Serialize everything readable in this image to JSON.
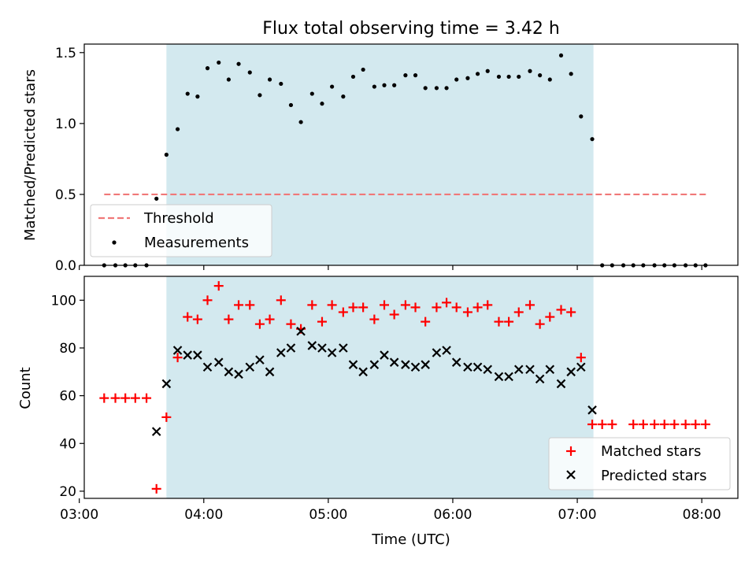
{
  "chart_data": [
    {
      "type": "scatter",
      "title": "Flux total observing time = 3.42 h",
      "xlabel": "",
      "ylabel": "Matched/Predicted stars",
      "xlim": [
        3.04,
        8.29
      ],
      "ylim": [
        0,
        1.56
      ],
      "yticks": [
        0,
        0.5,
        1.0,
        1.5
      ],
      "ytick_labels": [
        "0.0",
        "0.5",
        "1.0",
        "1.5"
      ],
      "shaded_interval": [
        3.7,
        7.13
      ],
      "shade_color": "#d3e9ef",
      "legend_position": "lower-left",
      "series": [
        {
          "name": "Threshold",
          "style": "dashed-line",
          "color": "#f07878",
          "x": [
            3.2,
            8.05
          ],
          "y": [
            0.5,
            0.5
          ]
        },
        {
          "name": "Measurements",
          "style": "dot",
          "color": "#000000",
          "x": [
            3.2,
            3.29,
            3.37,
            3.45,
            3.54,
            3.62,
            3.7,
            3.79,
            3.87,
            3.95,
            4.03,
            4.12,
            4.2,
            4.28,
            4.37,
            4.45,
            4.53,
            4.62,
            4.7,
            4.78,
            4.87,
            4.95,
            5.03,
            5.12,
            5.2,
            5.28,
            5.37,
            5.45,
            5.53,
            5.62,
            5.7,
            5.78,
            5.87,
            5.95,
            6.03,
            6.12,
            6.2,
            6.28,
            6.37,
            6.45,
            6.53,
            6.62,
            6.7,
            6.78,
            6.87,
            6.95,
            7.03,
            7.12,
            7.2,
            7.28,
            7.37,
            7.45,
            7.53,
            7.62,
            7.7,
            7.78,
            7.87,
            7.95,
            8.03
          ],
          "y": [
            0,
            0,
            0,
            0,
            0,
            0.47,
            0.78,
            0.96,
            1.21,
            1.19,
            1.39,
            1.43,
            1.31,
            1.42,
            1.36,
            1.2,
            1.31,
            1.28,
            1.13,
            1.01,
            1.21,
            1.14,
            1.26,
            1.19,
            1.33,
            1.38,
            1.26,
            1.27,
            1.27,
            1.34,
            1.34,
            1.25,
            1.25,
            1.25,
            1.31,
            1.32,
            1.35,
            1.37,
            1.33,
            1.33,
            1.33,
            1.37,
            1.34,
            1.31,
            1.48,
            1.35,
            1.05,
            0.89,
            0,
            0,
            0,
            0,
            0,
            0,
            0,
            0,
            0,
            0,
            0
          ]
        }
      ],
      "xtick_labels": [
        "03:00",
        "04:00",
        "05:00",
        "06:00",
        "07:00",
        "08:00"
      ],
      "xticks": [
        3,
        4,
        5,
        6,
        7,
        8
      ]
    },
    {
      "type": "scatter",
      "title": "",
      "xlabel": "Time (UTC)",
      "ylabel": "Count",
      "xlim": [
        3.04,
        8.29
      ],
      "ylim": [
        17,
        110
      ],
      "xticks": [
        3,
        4,
        5,
        6,
        7,
        8
      ],
      "xtick_labels": [
        "03:00",
        "04:00",
        "05:00",
        "06:00",
        "07:00",
        "08:00"
      ],
      "yticks": [
        20,
        40,
        60,
        80,
        100
      ],
      "ytick_labels": [
        "20",
        "40",
        "60",
        "80",
        "100"
      ],
      "shaded_interval": [
        3.7,
        7.13
      ],
      "shade_color": "#d3e9ef",
      "legend_position": "lower-right",
      "series": [
        {
          "name": "Matched stars",
          "style": "plus",
          "color": "#ff0000",
          "x": [
            3.2,
            3.29,
            3.37,
            3.45,
            3.54,
            3.62,
            3.7,
            3.79,
            3.87,
            3.95,
            4.03,
            4.12,
            4.2,
            4.28,
            4.37,
            4.45,
            4.53,
            4.62,
            4.7,
            4.78,
            4.87,
            4.95,
            5.03,
            5.12,
            5.2,
            5.28,
            5.37,
            5.45,
            5.53,
            5.62,
            5.7,
            5.78,
            5.87,
            5.95,
            6.03,
            6.12,
            6.2,
            6.28,
            6.37,
            6.45,
            6.53,
            6.62,
            6.7,
            6.78,
            6.87,
            6.95,
            7.03,
            7.12,
            7.2,
            7.28,
            7.37,
            7.45,
            7.53,
            7.62,
            7.7,
            7.78,
            7.87,
            7.95,
            8.03
          ],
          "y": [
            59,
            59,
            59,
            59,
            59,
            21,
            51,
            76,
            93,
            92,
            100,
            106,
            92,
            98,
            98,
            90,
            92,
            100,
            90,
            88,
            98,
            91,
            98,
            95,
            97,
            97,
            92,
            98,
            94,
            98,
            97,
            91,
            97,
            99,
            97,
            95,
            97,
            98,
            91,
            91,
            95,
            98,
            90,
            93,
            96,
            95,
            76,
            48,
            48,
            48,
            null,
            48,
            48,
            48,
            48,
            48,
            48,
            48,
            48
          ]
        },
        {
          "name": "Predicted stars",
          "style": "x",
          "color": "#000000",
          "x": [
            3.62,
            3.7,
            3.79,
            3.87,
            3.95,
            4.03,
            4.12,
            4.2,
            4.28,
            4.37,
            4.45,
            4.53,
            4.62,
            4.7,
            4.78,
            4.87,
            4.95,
            5.03,
            5.12,
            5.2,
            5.28,
            5.37,
            5.45,
            5.53,
            5.62,
            5.7,
            5.78,
            5.87,
            5.95,
            6.03,
            6.12,
            6.2,
            6.28,
            6.37,
            6.45,
            6.53,
            6.62,
            6.7,
            6.78,
            6.87,
            6.95,
            7.03,
            7.12
          ],
          "y": [
            45,
            65,
            79,
            77,
            77,
            72,
            74,
            70,
            69,
            72,
            75,
            70,
            78,
            80,
            87,
            81,
            80,
            78,
            80,
            73,
            70,
            73,
            77,
            74,
            73,
            72,
            73,
            78,
            79,
            74,
            72,
            72,
            71,
            68,
            68,
            71,
            71,
            67,
            71,
            65,
            70,
            72,
            54
          ]
        }
      ]
    }
  ]
}
